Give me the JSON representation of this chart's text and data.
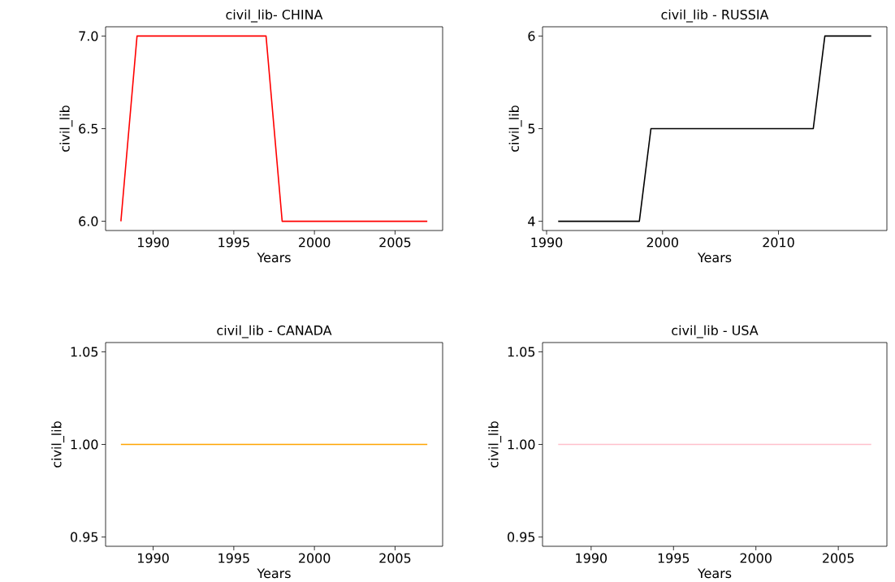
{
  "chart_data": [
    {
      "type": "line",
      "title": "civil_lib- CHINA",
      "xlabel": "Years",
      "ylabel": "civil_lib",
      "x": [
        1988,
        1989,
        1990,
        1991,
        1992,
        1993,
        1994,
        1995,
        1996,
        1997,
        1998,
        1999,
        2000,
        2001,
        2002,
        2003,
        2004,
        2005,
        2006,
        2007
      ],
      "series": [
        {
          "color": "#ff0000",
          "values": [
            6,
            7,
            7,
            7,
            7,
            7,
            7,
            7,
            7,
            7,
            6,
            6,
            6,
            6,
            6,
            6,
            6,
            6,
            6,
            6
          ]
        }
      ],
      "xlim": [
        1987.05,
        2007.95
      ],
      "ylim": [
        5.95,
        7.05
      ],
      "xticks": [
        1990,
        1995,
        2000,
        2005
      ],
      "yticks": [
        {
          "value": 6,
          "label": "6.0"
        },
        {
          "value": 6.5,
          "label": "6.5"
        },
        {
          "value": 7,
          "label": "7.0"
        }
      ]
    },
    {
      "type": "line",
      "title": "civil_lib - RUSSIA",
      "xlabel": "Years",
      "ylabel": "civil_lib",
      "x": [
        1991,
        1992,
        1993,
        1994,
        1995,
        1996,
        1997,
        1998,
        1999,
        2000,
        2001,
        2002,
        2003,
        2004,
        2005,
        2006,
        2007,
        2008,
        2009,
        2010,
        2011,
        2012,
        2013,
        2014,
        2015,
        2016,
        2017,
        2018
      ],
      "series": [
        {
          "color": "#000000",
          "values": [
            4,
            4,
            4,
            4,
            4,
            4,
            4,
            4,
            5,
            5,
            5,
            5,
            5,
            5,
            5,
            5,
            5,
            5,
            5,
            5,
            5,
            5,
            5,
            6,
            6,
            6,
            6,
            6
          ]
        }
      ],
      "xlim": [
        1989.65,
        2019.35
      ],
      "ylim": [
        3.9,
        6.1
      ],
      "xticks": [
        1990,
        2000,
        2010
      ],
      "yticks": [
        4,
        5,
        6
      ]
    },
    {
      "type": "line",
      "title": "civil_lib - CANADA",
      "xlabel": "Years",
      "ylabel": "civil_lib",
      "x": [
        1988,
        1989,
        1990,
        1991,
        1992,
        1993,
        1994,
        1995,
        1996,
        1997,
        1998,
        1999,
        2000,
        2001,
        2002,
        2003,
        2004,
        2005,
        2006,
        2007
      ],
      "series": [
        {
          "color": "#ffa500",
          "values": [
            1,
            1,
            1,
            1,
            1,
            1,
            1,
            1,
            1,
            1,
            1,
            1,
            1,
            1,
            1,
            1,
            1,
            1,
            1,
            1
          ]
        }
      ],
      "xlim": [
        1987.05,
        2007.95
      ],
      "ylim": [
        0.945,
        1.055
      ],
      "xticks": [
        1990,
        1995,
        2000,
        2005
      ],
      "yticks": [
        {
          "value": 0.95,
          "label": "0.95"
        },
        {
          "value": 1,
          "label": "1.00"
        },
        {
          "value": 1.05,
          "label": "1.05"
        }
      ]
    },
    {
      "type": "line",
      "title": "civil_lib - USA",
      "xlabel": "Years",
      "ylabel": "civil_lib",
      "x": [
        1988,
        1989,
        1990,
        1991,
        1992,
        1993,
        1994,
        1995,
        1996,
        1997,
        1998,
        1999,
        2000,
        2001,
        2002,
        2003,
        2004,
        2005,
        2006,
        2007
      ],
      "series": [
        {
          "color": "#ffc0cb",
          "values": [
            1,
            1,
            1,
            1,
            1,
            1,
            1,
            1,
            1,
            1,
            1,
            1,
            1,
            1,
            1,
            1,
            1,
            1,
            1,
            1
          ]
        }
      ],
      "xlim": [
        1987.05,
        2007.95
      ],
      "ylim": [
        0.945,
        1.055
      ],
      "xticks": [
        1990,
        1995,
        2000,
        2005
      ],
      "yticks": [
        {
          "value": 0.95,
          "label": "0.95"
        },
        {
          "value": 1,
          "label": "1.00"
        },
        {
          "value": 1.05,
          "label": "1.05"
        }
      ]
    }
  ]
}
